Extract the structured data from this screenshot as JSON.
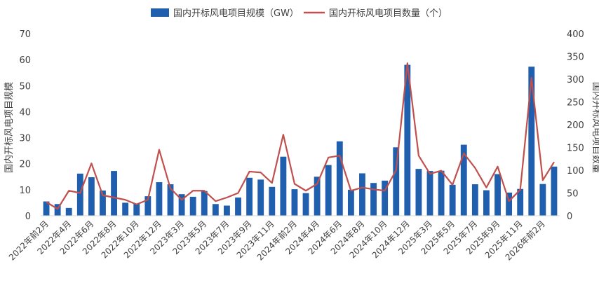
{
  "chart_data": {
    "type": "bar+line",
    "colors": {
      "bar": "#1f5fae",
      "line": "#c0504d"
    },
    "legend": {
      "bar_label": "国内开标风电项目规模（GW）",
      "line_label": "国内开标风电项目数量（个）",
      "position": "top-center"
    },
    "y_left": {
      "label": "国内开标风电项目规模",
      "ylim": [
        0,
        70
      ],
      "ticks": [
        "0",
        "10",
        "20",
        "30",
        "40",
        "50",
        "60",
        "70"
      ]
    },
    "y_right": {
      "label": "国内开标风电项目数量",
      "ylim": [
        0,
        400
      ],
      "ticks": [
        "0",
        "50",
        "100",
        "150",
        "200",
        "250",
        "300",
        "350",
        "400"
      ]
    },
    "x_tick_labels": [
      "2022年前2月",
      "2022年4月",
      "2022年6月",
      "2022年8月",
      "2022年10月",
      "2022年12月",
      "2023年3月",
      "2023年5月",
      "2023年7月",
      "2023年9月",
      "2023年11月",
      "2024年前2月",
      "2024年4月",
      "2024年6月",
      "2024年8月",
      "2024年10月",
      "2024年12月",
      "2025年3月",
      "2025年5月",
      "2025年7月",
      "2025年9月",
      "2025年11月",
      "2026年前2月"
    ],
    "x_tick_every": 2,
    "grid": false,
    "series": [
      {
        "name": "国内开标风电项目规模（GW）",
        "kind": "bar",
        "axis": "left",
        "values": [
          5.5,
          4.5,
          3.0,
          16.2,
          14.8,
          9.7,
          17.2,
          5.0,
          4.6,
          7.5,
          12.9,
          12.1,
          8.3,
          7.3,
          9.5,
          4.5,
          3.9,
          7.0,
          14.6,
          13.9,
          11.1,
          22.7,
          10.2,
          8.7,
          15.0,
          19.5,
          28.6,
          10.0,
          16.3,
          12.6,
          13.5,
          26.3,
          58.0,
          18.0,
          17.2,
          17.3,
          11.9,
          27.3,
          12.1,
          9.8,
          16.0,
          8.9,
          10.3,
          57.3,
          12.2,
          18.9
        ]
      },
      {
        "name": "国内开标风电项目数量（个）",
        "kind": "line",
        "axis": "right",
        "values": [
          30,
          15,
          55,
          50,
          115,
          45,
          40,
          35,
          25,
          35,
          145,
          60,
          35,
          55,
          55,
          32,
          40,
          50,
          97,
          95,
          72,
          178,
          70,
          55,
          70,
          128,
          132,
          55,
          62,
          58,
          55,
          100,
          335,
          132,
          92,
          99,
          68,
          137,
          105,
          62,
          108,
          32,
          57,
          303,
          78,
          118
        ]
      }
    ]
  }
}
